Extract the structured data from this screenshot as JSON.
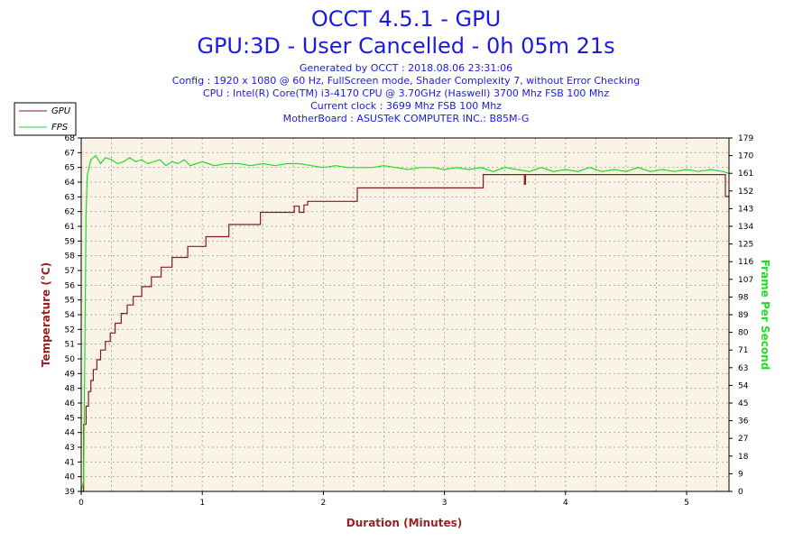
{
  "title": "OCCT 4.5.1 - GPU",
  "subtitle": "GPU:3D - User Cancelled - 0h 05m 21s",
  "info_lines": [
    "Generated by OCCT : 2018.08.06 23:31:06",
    "Config : 1920 x 1080 @ 60 Hz, FullScreen mode, Shader Complexity 7, without Error Checking",
    "CPU : Intel(R) Core(TM) i3-4170 CPU @ 3.70GHz (Haswell) 3700 Mhz FSB 100 Mhz",
    "Current clock : 3699 Mhz FSB 100 Mhz",
    "MotherBoard : ASUSTeK COMPUTER INC.: B85M-G"
  ],
  "colors": {
    "title": "#1a1ae6",
    "gpu": "#8b1a1a",
    "fps": "#22dd22",
    "plot_bg": "#f9f4e6",
    "grid": "#b0b0b0",
    "ylabel": "#9e2020",
    "y2label": "#22dd22",
    "xlabel": "#9e2020"
  },
  "chart_data": {
    "type": "line",
    "xlabel": "Duration (Minutes)",
    "ylabel": "Temperature (°C)",
    "y2label": "Frame Per Second",
    "xlim": [
      0,
      5.35
    ],
    "ylim": [
      39,
      68
    ],
    "y2lim": [
      0,
      179
    ],
    "x_ticks": [
      "0",
      "1",
      "2",
      "3",
      "4",
      "5"
    ],
    "y_ticks": [
      "39",
      "40",
      "41",
      "43",
      "44",
      "45",
      "46",
      "48",
      "49",
      "50",
      "51",
      "52",
      "54",
      "55",
      "56",
      "57",
      "58",
      "59",
      "61",
      "62",
      "63",
      "64",
      "65",
      "67",
      "68"
    ],
    "y2_ticks": [
      "0",
      "9",
      "18",
      "27",
      "36",
      "45",
      "54",
      "63",
      "71",
      "80",
      "89",
      "98",
      "107",
      "116",
      "125",
      "134",
      "143",
      "152",
      "161",
      "170",
      "179"
    ],
    "legend": [
      "GPU",
      "FPS"
    ],
    "legend_position": "top-left",
    "grid": true,
    "series": [
      {
        "name": "GPU",
        "axis": "left",
        "points": [
          [
            0.0,
            39.0
          ],
          [
            0.02,
            44.5
          ],
          [
            0.04,
            46.0
          ],
          [
            0.06,
            47.2
          ],
          [
            0.08,
            48.1
          ],
          [
            0.1,
            49.0
          ],
          [
            0.13,
            49.8
          ],
          [
            0.16,
            50.6
          ],
          [
            0.2,
            51.3
          ],
          [
            0.24,
            52.0
          ],
          [
            0.28,
            52.8
          ],
          [
            0.33,
            53.6
          ],
          [
            0.38,
            54.3
          ],
          [
            0.43,
            55.0
          ],
          [
            0.5,
            55.8
          ],
          [
            0.58,
            56.6
          ],
          [
            0.66,
            57.4
          ],
          [
            0.75,
            58.2
          ],
          [
            0.88,
            59.1
          ],
          [
            1.03,
            59.9
          ],
          [
            1.22,
            60.9
          ],
          [
            1.48,
            61.9
          ],
          [
            1.76,
            62.4
          ],
          [
            1.8,
            61.9
          ],
          [
            1.84,
            62.5
          ],
          [
            1.87,
            62.8
          ],
          [
            2.1,
            62.8
          ],
          [
            2.28,
            63.9
          ],
          [
            2.6,
            63.9
          ],
          [
            3.0,
            63.9
          ],
          [
            3.3,
            63.9
          ],
          [
            3.32,
            65.0
          ],
          [
            3.65,
            65.0
          ],
          [
            3.66,
            64.2
          ],
          [
            3.67,
            65.0
          ],
          [
            4.2,
            65.0
          ],
          [
            4.8,
            65.0
          ],
          [
            5.3,
            65.0
          ],
          [
            5.32,
            63.2
          ],
          [
            5.35,
            63.0
          ]
        ]
      },
      {
        "name": "FPS",
        "axis": "right",
        "points": [
          [
            0.0,
            0
          ],
          [
            0.02,
            5
          ],
          [
            0.04,
            140
          ],
          [
            0.05,
            160
          ],
          [
            0.08,
            168
          ],
          [
            0.12,
            170
          ],
          [
            0.16,
            166
          ],
          [
            0.2,
            169
          ],
          [
            0.25,
            168
          ],
          [
            0.3,
            166
          ],
          [
            0.35,
            167
          ],
          [
            0.4,
            169
          ],
          [
            0.45,
            167
          ],
          [
            0.5,
            168
          ],
          [
            0.55,
            166
          ],
          [
            0.6,
            167
          ],
          [
            0.65,
            168
          ],
          [
            0.7,
            165
          ],
          [
            0.75,
            167
          ],
          [
            0.8,
            166
          ],
          [
            0.85,
            168
          ],
          [
            0.9,
            165
          ],
          [
            0.95,
            166
          ],
          [
            1.0,
            167
          ],
          [
            1.1,
            165
          ],
          [
            1.2,
            166
          ],
          [
            1.3,
            166
          ],
          [
            1.4,
            165
          ],
          [
            1.5,
            166
          ],
          [
            1.6,
            165
          ],
          [
            1.7,
            166
          ],
          [
            1.8,
            166
          ],
          [
            1.9,
            165
          ],
          [
            2.0,
            164
          ],
          [
            2.1,
            165
          ],
          [
            2.2,
            164
          ],
          [
            2.3,
            164
          ],
          [
            2.4,
            164
          ],
          [
            2.5,
            165
          ],
          [
            2.6,
            164
          ],
          [
            2.7,
            163
          ],
          [
            2.8,
            164
          ],
          [
            2.9,
            164
          ],
          [
            3.0,
            163
          ],
          [
            3.1,
            164
          ],
          [
            3.2,
            163
          ],
          [
            3.3,
            164
          ],
          [
            3.4,
            162
          ],
          [
            3.5,
            164
          ],
          [
            3.6,
            163
          ],
          [
            3.7,
            162
          ],
          [
            3.8,
            164
          ],
          [
            3.9,
            162
          ],
          [
            4.0,
            163
          ],
          [
            4.1,
            162
          ],
          [
            4.2,
            164
          ],
          [
            4.3,
            162
          ],
          [
            4.4,
            163
          ],
          [
            4.5,
            162
          ],
          [
            4.6,
            164
          ],
          [
            4.7,
            162
          ],
          [
            4.8,
            163
          ],
          [
            4.9,
            162
          ],
          [
            5.0,
            163
          ],
          [
            5.1,
            162
          ],
          [
            5.2,
            163
          ],
          [
            5.3,
            162
          ],
          [
            5.35,
            161
          ]
        ]
      }
    ]
  }
}
